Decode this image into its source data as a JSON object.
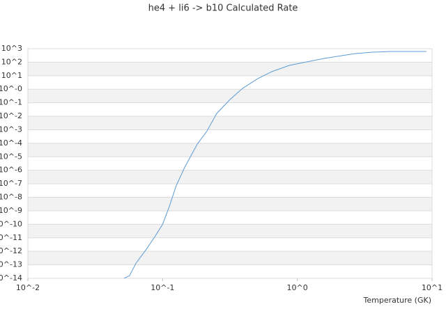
{
  "chart_data": {
    "type": "line",
    "title": "he4 + li6 -> b10 Calculated Rate",
    "x_label": "Temperature (GK)",
    "x_scale": "log",
    "y_scale": "log",
    "grid": "bands",
    "xlim": [
      0.01,
      10
    ],
    "ylim": [
      1e-14,
      1000
    ],
    "xticks": [
      {
        "value": 0.01,
        "label": "10^-2"
      },
      {
        "value": 0.1,
        "label": "10^-1"
      },
      {
        "value": 1,
        "label": "10^0"
      },
      {
        "value": 10,
        "label": "10^1"
      }
    ],
    "yticks": [
      {
        "value": 1000,
        "label": "10^3"
      },
      {
        "value": 100,
        "label": "10^2"
      },
      {
        "value": 10,
        "label": "10^1"
      },
      {
        "value": 1,
        "label": "10^-0"
      },
      {
        "value": 0.1,
        "label": "10^-1"
      },
      {
        "value": 0.01,
        "label": "10^-2"
      },
      {
        "value": 0.001,
        "label": "10^-3"
      },
      {
        "value": 0.0001,
        "label": "10^-4"
      },
      {
        "value": 1e-05,
        "label": "10^-5"
      },
      {
        "value": 1e-06,
        "label": "10^-6"
      },
      {
        "value": 1e-07,
        "label": "10^-7"
      },
      {
        "value": 1e-08,
        "label": "10^-8"
      },
      {
        "value": 1e-09,
        "label": "10^-9"
      },
      {
        "value": 1e-10,
        "label": "10^-10"
      },
      {
        "value": 1e-11,
        "label": "10^-11"
      },
      {
        "value": 1e-12,
        "label": "10^-12"
      },
      {
        "value": 1e-13,
        "label": "10^-13"
      },
      {
        "value": 1e-14,
        "label": "10^-14"
      }
    ],
    "x": [
      0.0518,
      0.0569,
      0.0634,
      0.0757,
      0.0875,
      0.1,
      0.112,
      0.126,
      0.146,
      0.181,
      0.214,
      0.252,
      0.316,
      0.392,
      0.509,
      0.646,
      0.87,
      1.17,
      1.58,
      2.13,
      2.7,
      3.64,
      4.9,
      9.1
    ],
    "series": [
      {
        "color": "#5b9bd5",
        "values": [
          1e-14,
          1.6e-14,
          1.3e-13,
          1.4e-12,
          1.2e-11,
          1e-10,
          2e-09,
          7e-08,
          1.7e-06,
          8.7e-05,
          0.00083,
          0.016,
          0.17,
          1.15,
          6.1,
          20,
          58,
          105,
          190,
          305,
          436,
          550,
          620,
          620
        ]
      }
    ]
  }
}
